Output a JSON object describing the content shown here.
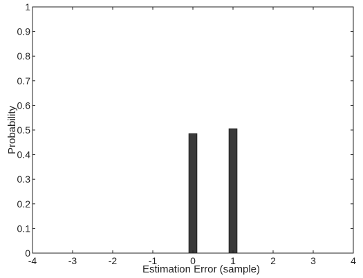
{
  "chart_data": {
    "type": "bar",
    "title": "",
    "xlabel": "Estimation Error (sample)",
    "ylabel": "Probability",
    "xlim": [
      -4,
      4
    ],
    "ylim": [
      0,
      1
    ],
    "x_ticks": [
      -4,
      -3,
      -2,
      -1,
      0,
      1,
      2,
      3,
      4
    ],
    "y_ticks": [
      0,
      0.1,
      0.2,
      0.3,
      0.4,
      0.5,
      0.6,
      0.7,
      0.8,
      0.9,
      1
    ],
    "x_tick_labels": [
      "-4",
      "-3",
      "-2",
      "-1",
      "0",
      "1",
      "2",
      "3",
      "4"
    ],
    "y_tick_labels": [
      "0",
      "0.1",
      "0.2",
      "0.3",
      "0.4",
      "0.5",
      "0.6",
      "0.7",
      "0.8",
      "0.9",
      "1"
    ],
    "x": [
      0,
      1
    ],
    "values": [
      0.485,
      0.505
    ],
    "grid": false,
    "colors": {
      "bar": "#3a3a3a",
      "axis": "#222222"
    }
  }
}
